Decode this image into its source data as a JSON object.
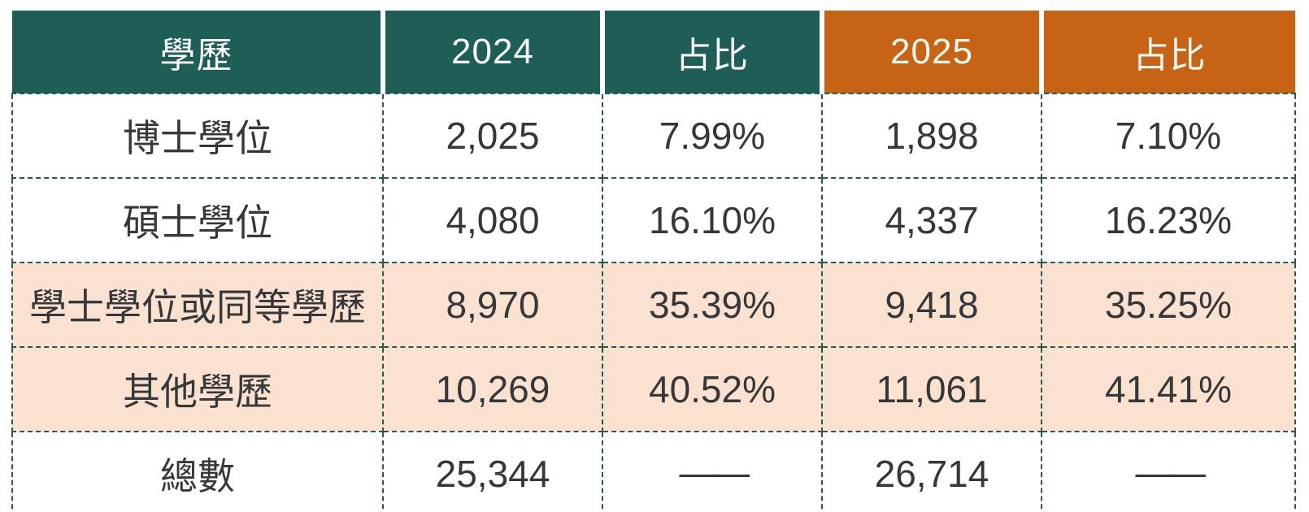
{
  "table": {
    "headers": [
      "學歷",
      "2024",
      "占比",
      "2025",
      "占比"
    ],
    "rows": [
      [
        "博士學位",
        "2,025",
        "7.99%",
        "1,898",
        "7.10%"
      ],
      [
        "碩士學位",
        "4,080",
        "16.10%",
        "4,337",
        "16.23%"
      ],
      [
        "學士學位或同等學歷",
        "8,970",
        "35.39%",
        "9,418",
        "35.25%"
      ],
      [
        "其他學歷",
        "10,269",
        "40.52%",
        "11,061",
        "41.41%"
      ],
      [
        "總數",
        "25,344",
        "——",
        "26,714",
        "——"
      ]
    ]
  },
  "colors": {
    "header_teal": "#1d5e56",
    "header_orange": "#c66315",
    "highlight_row": "#fbe2d0",
    "grid_border": "#265a51",
    "body_text": "#35383a",
    "header_text": "#fbf9f5",
    "background": "#ffffff"
  },
  "chart_data": {
    "type": "table",
    "title": "",
    "columns": [
      "學歷",
      "2024",
      "占比",
      "2025",
      "占比"
    ],
    "rows": [
      [
        "博士學位",
        2025,
        "7.99%",
        1898,
        "7.10%"
      ],
      [
        "碩士學位",
        4080,
        "16.10%",
        4337,
        "16.23%"
      ],
      [
        "學士學位或同等學歷",
        8970,
        "35.39%",
        9418,
        "35.25%"
      ],
      [
        "其他學歷",
        10269,
        "40.52%",
        11061,
        "41.41%"
      ],
      [
        "總數",
        25344,
        null,
        26714,
        null
      ]
    ],
    "highlighted_row_indices": [
      2,
      3
    ],
    "header_theme": {
      "teal_columns": [
        0,
        1,
        2
      ],
      "orange_columns": [
        3,
        4
      ]
    },
    "grid": "dashed"
  }
}
